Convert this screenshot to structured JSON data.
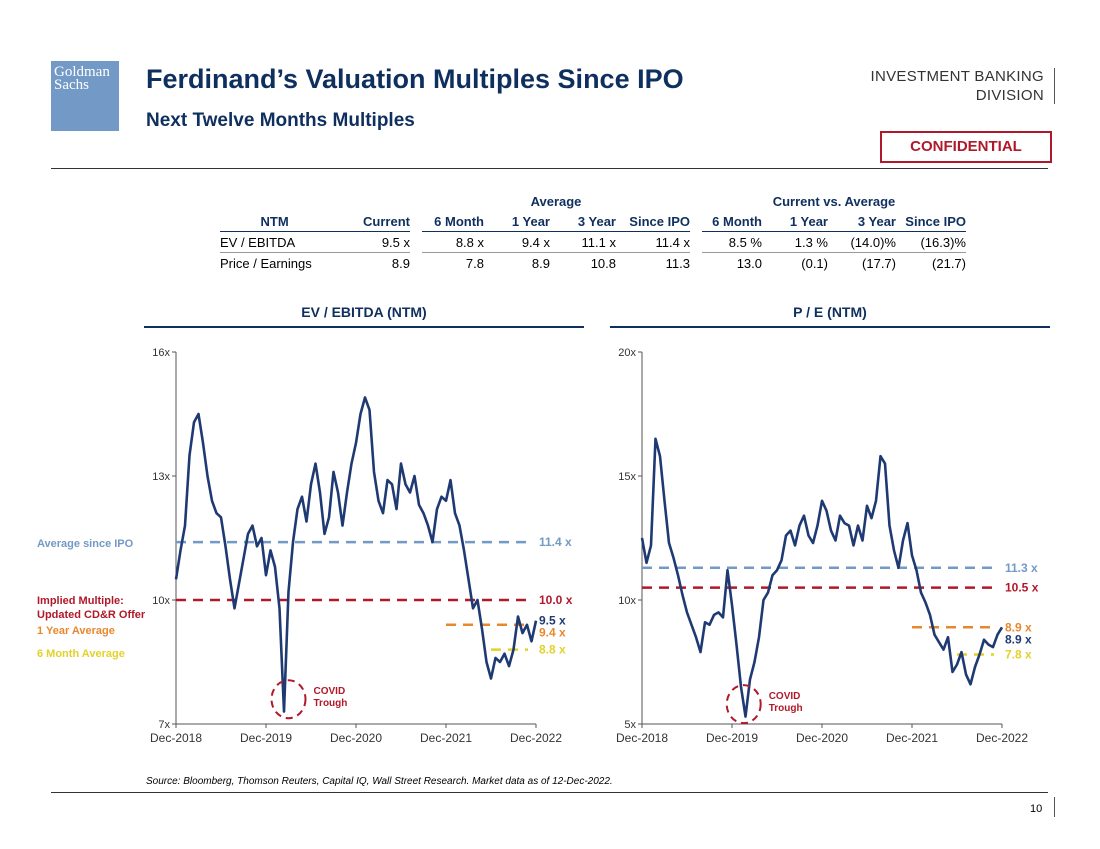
{
  "header": {
    "logo_text": "Goldman Sachs",
    "title": "Ferdinand’s Valuation Multiples Since IPO",
    "subtitle": "Next Twelve Months Multiples",
    "division_line1": "INVESTMENT BANKING",
    "division_line2": "DIVISION",
    "confidential": "CONFIDENTIAL"
  },
  "table": {
    "group_average": "Average",
    "group_vs": "Current vs. Average",
    "columns": [
      "NTM",
      "Current",
      "6 Month",
      "1 Year",
      "3 Year",
      "Since IPO",
      "6 Month",
      "1 Year",
      "3 Year",
      "Since IPO"
    ],
    "rows": [
      [
        "EV / EBITDA",
        "9.5 x",
        "8.8 x",
        "9.4 x",
        "11.1 x",
        "11.4 x",
        "8.5 %",
        "1.3 %",
        "(14.0)%",
        "(16.3)%"
      ],
      [
        "Price / Earnings",
        "8.9",
        "7.8",
        "8.9",
        "10.8",
        "11.3",
        "13.0",
        "(0.1)",
        "(17.7)",
        "(21.7)"
      ]
    ]
  },
  "legend_labels": {
    "avg_ipo": "Average since IPO",
    "implied_1": "Implied Multiple:",
    "implied_2": "Updated CD&R Offer",
    "one_year": "1 Year Average",
    "six_month": "6 Month Average"
  },
  "colors": {
    "navy": "#1f3a73",
    "ipo": "#7399c6",
    "implied": "#b0192a",
    "oneyear": "#e8882e",
    "sixmonth": "#e3d12a"
  },
  "chart_data": [
    {
      "type": "line",
      "title": "EV / EBITDA (NTM)",
      "x_ticks": [
        "Dec-2018",
        "Dec-2019",
        "Dec-2020",
        "Dec-2021",
        "Dec-2022"
      ],
      "y_ticks": [
        "7x",
        "10x",
        "13x",
        "16x"
      ],
      "ylim": [
        7,
        16
      ],
      "series": [
        {
          "x": [
            0,
            0.05,
            0.1,
            0.15,
            0.2,
            0.25,
            0.3,
            0.35,
            0.4,
            0.45,
            0.5,
            0.55,
            0.6,
            0.65,
            0.7,
            0.75,
            0.8,
            0.85,
            0.9,
            0.95,
            1,
            1.05,
            1.1,
            1.15,
            1.2,
            1.25,
            1.3,
            1.35,
            1.4,
            1.45,
            1.5,
            1.55,
            1.6,
            1.65,
            1.7,
            1.75,
            1.8,
            1.85,
            1.9,
            1.95,
            2,
            2.05,
            2.1,
            2.15,
            2.2,
            2.25,
            2.3,
            2.35,
            2.4,
            2.45,
            2.5,
            2.55,
            2.6,
            2.65,
            2.7,
            2.75,
            2.8,
            2.85,
            2.9,
            2.95,
            3,
            3.05,
            3.1,
            3.15,
            3.2,
            3.25,
            3.3,
            3.35,
            3.4,
            3.45,
            3.5,
            3.55,
            3.6,
            3.65,
            3.7,
            3.75,
            3.8,
            3.85,
            3.9,
            3.95,
            4
          ],
          "values": [
            10.5,
            11.2,
            11.8,
            13.5,
            14.3,
            14.5,
            13.8,
            13.0,
            12.4,
            12.1,
            12.0,
            11.3,
            10.5,
            9.8,
            10.4,
            11.0,
            11.6,
            11.8,
            11.3,
            11.5,
            10.6,
            11.2,
            10.8,
            9.8,
            7.3,
            10.2,
            11.4,
            12.2,
            12.5,
            11.9,
            12.8,
            13.3,
            12.6,
            11.6,
            12.0,
            13.1,
            12.6,
            11.8,
            12.6,
            13.3,
            13.8,
            14.5,
            14.9,
            14.6,
            13.1,
            12.4,
            12.1,
            12.9,
            12.8,
            12.2,
            13.3,
            12.8,
            12.6,
            13.0,
            12.3,
            12.1,
            11.8,
            11.4,
            12.2,
            12.5,
            12.4,
            12.9,
            12.1,
            11.8,
            11.2,
            10.5,
            9.8,
            10.0,
            9.3,
            8.5,
            8.1,
            8.6,
            8.5,
            8.7,
            8.4,
            8.8,
            9.6,
            9.2,
            9.4,
            9.0,
            9.5
          ]
        }
      ],
      "reference_lines": [
        {
          "label": "11.4 x",
          "value": 11.4,
          "x_start": 0,
          "kind": "ipo"
        },
        {
          "label": "10.0 x",
          "value": 10.0,
          "x_start": 0,
          "kind": "implied"
        },
        {
          "label": "9.5 x",
          "value": 9.5,
          "kind": "current"
        },
        {
          "label": "9.4 x",
          "value": 9.4,
          "x_start": 3.0,
          "kind": "oneyear"
        },
        {
          "label": "8.8 x",
          "value": 8.8,
          "x_start": 3.5,
          "kind": "sixmonth"
        }
      ],
      "annotation": {
        "line1": "COVID",
        "line2": "Trough",
        "x": 1.25,
        "y": 7.6
      }
    },
    {
      "type": "line",
      "title": "P / E (NTM)",
      "x_ticks": [
        "Dec-2018",
        "Dec-2019",
        "Dec-2020",
        "Dec-2021",
        "Dec-2022"
      ],
      "y_ticks": [
        "5x",
        "10x",
        "15x",
        "20x"
      ],
      "ylim": [
        5,
        20
      ],
      "series": [
        {
          "x": [
            0,
            0.05,
            0.1,
            0.15,
            0.2,
            0.25,
            0.3,
            0.35,
            0.4,
            0.45,
            0.5,
            0.55,
            0.6,
            0.65,
            0.7,
            0.75,
            0.8,
            0.85,
            0.9,
            0.95,
            1,
            1.05,
            1.1,
            1.15,
            1.2,
            1.25,
            1.3,
            1.35,
            1.4,
            1.45,
            1.5,
            1.55,
            1.6,
            1.65,
            1.7,
            1.75,
            1.8,
            1.85,
            1.9,
            1.95,
            2,
            2.05,
            2.1,
            2.15,
            2.2,
            2.25,
            2.3,
            2.35,
            2.4,
            2.45,
            2.5,
            2.55,
            2.6,
            2.65,
            2.7,
            2.75,
            2.8,
            2.85,
            2.9,
            2.95,
            3,
            3.05,
            3.1,
            3.15,
            3.2,
            3.25,
            3.3,
            3.35,
            3.4,
            3.45,
            3.5,
            3.55,
            3.6,
            3.65,
            3.7,
            3.75,
            3.8,
            3.85,
            3.9,
            3.95,
            4
          ],
          "values": [
            12.5,
            11.5,
            12.2,
            16.5,
            15.8,
            14.0,
            12.3,
            11.7,
            11.0,
            10.2,
            9.5,
            9.0,
            8.5,
            7.9,
            9.1,
            9.0,
            9.4,
            9.5,
            9.3,
            11.2,
            9.8,
            8.2,
            6.5,
            5.3,
            6.8,
            7.5,
            8.5,
            10.0,
            10.3,
            11.0,
            11.2,
            11.6,
            12.6,
            12.8,
            12.2,
            13.0,
            13.4,
            12.6,
            12.3,
            13.0,
            14.0,
            13.6,
            12.8,
            12.4,
            13.4,
            13.1,
            13.0,
            12.2,
            13.0,
            12.4,
            13.8,
            13.3,
            14.0,
            15.8,
            15.5,
            13.0,
            12.0,
            11.3,
            12.4,
            13.1,
            11.8,
            11.2,
            10.3,
            9.9,
            9.4,
            8.6,
            8.3,
            8.0,
            8.5,
            7.1,
            7.4,
            7.9,
            7.0,
            6.6,
            7.3,
            7.8,
            8.4,
            8.2,
            8.1,
            8.6,
            8.9
          ]
        }
      ],
      "reference_lines": [
        {
          "label": "11.3 x",
          "value": 11.3,
          "x_start": 0,
          "kind": "ipo"
        },
        {
          "label": "10.5 x",
          "value": 10.5,
          "x_start": 0,
          "kind": "implied"
        },
        {
          "label": "8.9 x",
          "value": 8.9,
          "x_start": 3.0,
          "kind": "oneyear"
        },
        {
          "label": "8.9 x",
          "value": 8.9,
          "kind": "current"
        },
        {
          "label": "7.8 x",
          "value": 7.8,
          "x_start": 3.5,
          "kind": "sixmonth"
        }
      ],
      "annotation": {
        "line1": "COVID",
        "line2": "Trough",
        "x": 1.13,
        "y": 5.8
      }
    }
  ],
  "footer": {
    "source": "Source: Bloomberg, Thomson Reuters, Capital IQ, Wall Street Research. Market data as of 12-Dec-2022.",
    "page_number": "10"
  }
}
